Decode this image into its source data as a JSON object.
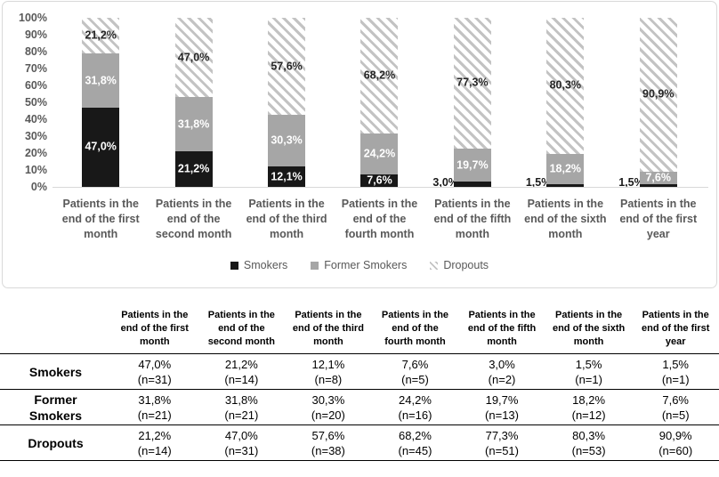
{
  "chart_data": {
    "type": "bar",
    "subtype": "100%-stacked-column",
    "title": "",
    "xlabel": "",
    "ylabel": "",
    "ylim": [
      0,
      100
    ],
    "grid": false,
    "legend_position": "bottom",
    "y_ticks": [
      "100%",
      "90%",
      "80%",
      "70%",
      "60%",
      "50%",
      "40%",
      "30%",
      "20%",
      "10%",
      "0%"
    ],
    "categories": [
      "Patients in the end of the first month",
      "Patients in the end of the second month",
      "Patients in the end of the third month",
      "Patients in the end of the fourth month",
      "Patients in the end of the fifth month",
      "Patients in the end of the sixth month",
      "Patients in the end of the first year"
    ],
    "series": [
      {
        "name": "Smokers",
        "fill": "solid",
        "color": "#181818",
        "label_color": "#ffffff",
        "values": [
          47.0,
          21.2,
          12.1,
          7.6,
          3.0,
          1.5,
          1.5
        ],
        "labels": [
          "47,0%",
          "21,2%",
          "12,1%",
          "7,6%",
          "3,0%",
          "1,5%",
          "1,5%"
        ]
      },
      {
        "name": "Former Smokers",
        "fill": "solid",
        "color": "#a6a6a6",
        "label_color": "#ffffff",
        "values": [
          31.8,
          31.8,
          30.3,
          24.2,
          19.7,
          18.2,
          7.6
        ],
        "labels": [
          "31,8%",
          "31,8%",
          "30,3%",
          "24,2%",
          "19,7%",
          "18,2%",
          "7,6%"
        ]
      },
      {
        "name": "Dropouts",
        "fill": "diagonal-hatch",
        "color": "#c3c3c3",
        "label_color": "#262626",
        "values": [
          21.2,
          47.0,
          57.6,
          68.2,
          77.3,
          80.3,
          90.9
        ],
        "labels": [
          "21,2%",
          "47,0%",
          "57,6%",
          "68,2%",
          "77,3%",
          "80,3%",
          "90,9%"
        ]
      }
    ]
  },
  "table": {
    "header": [
      "",
      "Patients in the end of the first month",
      "Patients in the end of the second month",
      "Patients in the end of the third month",
      "Patients in the end of the fourth month",
      "Patients in the end of the fifth month",
      "Patients in the end of the sixth month",
      "Patients in the end of the first year"
    ],
    "rows": [
      {
        "label": "Smokers",
        "cells": [
          [
            "47,0%",
            "(n=31)"
          ],
          [
            "21,2%",
            "(n=14)"
          ],
          [
            "12,1%",
            "(n=8)"
          ],
          [
            "7,6%",
            "(n=5)"
          ],
          [
            "3,0%",
            "(n=2)"
          ],
          [
            "1,5%",
            "(n=1)"
          ],
          [
            "1,5%",
            "(n=1)"
          ]
        ]
      },
      {
        "label": "Former Smokers",
        "cells": [
          [
            "31,8%",
            "(n=21)"
          ],
          [
            "31,8%",
            "(n=21)"
          ],
          [
            "30,3%",
            "(n=20)"
          ],
          [
            "24,2%",
            "(n=16)"
          ],
          [
            "19,7%",
            "(n=13)"
          ],
          [
            "18,2%",
            "(n=12)"
          ],
          [
            "7,6%",
            "(n=5)"
          ]
        ]
      },
      {
        "label": "Dropouts",
        "cells": [
          [
            "21,2%",
            "(n=14)"
          ],
          [
            "47,0%",
            "(n=31)"
          ],
          [
            "57,6%",
            "(n=38)"
          ],
          [
            "68,2%",
            "(n=45)"
          ],
          [
            "77,3%",
            "(n=51)"
          ],
          [
            "80,3%",
            "(n=53)"
          ],
          [
            "90,9%",
            "(n=60)"
          ]
        ]
      }
    ]
  },
  "colors": {
    "smokers": "#181818",
    "former_smokers": "#a6a6a6",
    "hatch_line": "#c3c3c3",
    "chart_text": "#595959",
    "axis_line": "#d9d9d9",
    "outside_label": "#1a1a1a",
    "table_line": "#000000"
  }
}
